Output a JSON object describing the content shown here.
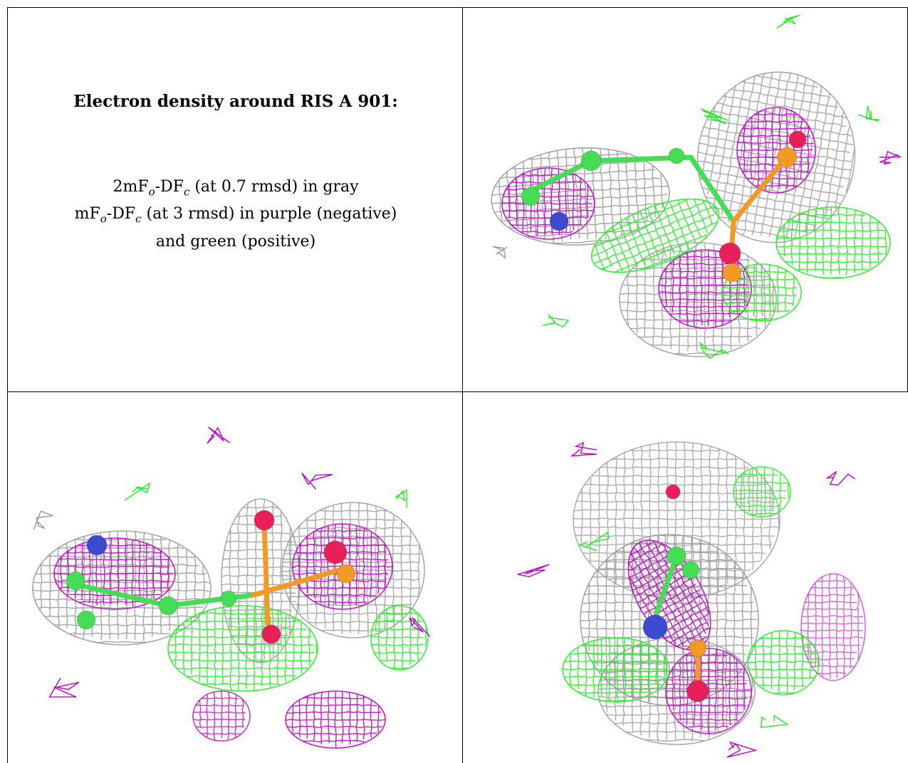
{
  "title": "Electron density around RIS A 901:",
  "legend": {
    "line1": {
      "prefix": "2mF",
      "sub1": "o",
      "mid": "-DF",
      "sub2": "c",
      "suffix": " (at 0.7 rmsd) in gray"
    },
    "line2": {
      "prefix": "mF",
      "sub1": "o",
      "mid": "-DF",
      "sub2": "c",
      "suffix": " (at 3 rmsd) in purple (negative)"
    },
    "line3": "and green (positive)"
  },
  "colors": {
    "gray_mesh": "#9a9a9a",
    "purple_mesh": "#c000c8",
    "green_mesh": "#22ee22",
    "carbon_atom": "#44dd55",
    "oxygen_atom": "#e8205a",
    "phosphorus_atom": "#f39a25",
    "nitrogen_atom": "#3b4ad0"
  },
  "panels": [
    {
      "view": "view-1"
    },
    {
      "view": "view-2"
    },
    {
      "view": "view-3"
    }
  ]
}
